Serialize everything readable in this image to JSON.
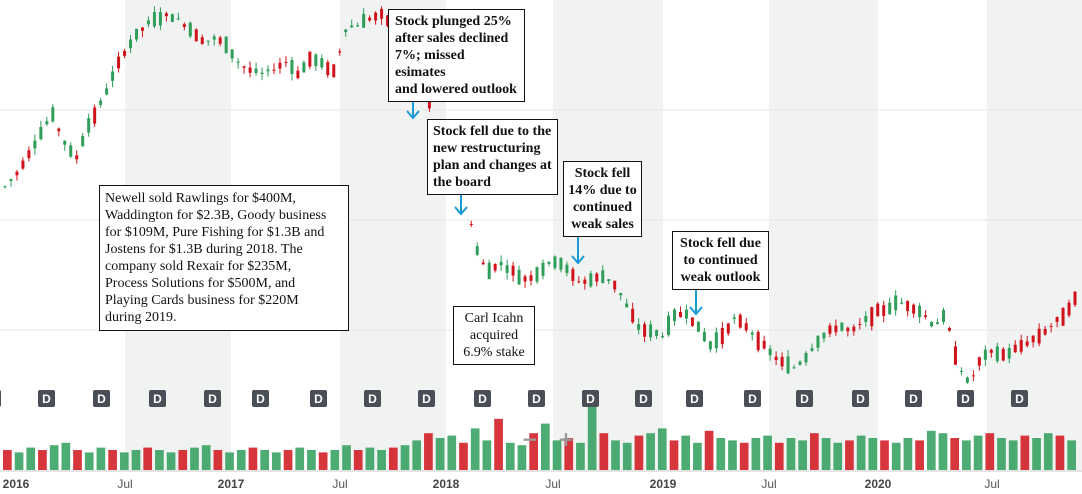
{
  "chart_data": {
    "type": "candlestick",
    "title": "",
    "xlabel": "",
    "ylabel": "",
    "x_tick_labels": [
      "2016",
      "Jul",
      "2017",
      "Jul",
      "2018",
      "Jul",
      "2019",
      "Jul",
      "2020",
      "Jul"
    ],
    "colors": {
      "up": "#2e9e5a",
      "down": "#d0131b",
      "arrow": "#1a9ad6",
      "band": "#f1f2f2"
    },
    "price_series": [
      0.48,
      0.52,
      0.58,
      0.64,
      0.7,
      0.62,
      0.56,
      0.66,
      0.72,
      0.8,
      0.88,
      0.93,
      0.97,
      0.99,
      1.0,
      0.98,
      0.95,
      0.92,
      0.93,
      0.9,
      0.85,
      0.83,
      0.82,
      0.84,
      0.86,
      0.82,
      0.87,
      0.85,
      0.83,
      0.96,
      0.97,
      0.99,
      1.0,
      0.97,
      0.94,
      0.86,
      0.74,
      0.62,
      0.6,
      0.5,
      0.3,
      0.22,
      0.25,
      0.23,
      0.2,
      0.21,
      0.24,
      0.26,
      0.22,
      0.19,
      0.2,
      0.21,
      0.18,
      0.11,
      0.05,
      0.04,
      0.03,
      0.09,
      0.1,
      0.05,
      0.0,
      0.03,
      0.08,
      0.06,
      0.02,
      -0.02,
      -0.05,
      -0.07,
      -0.04,
      0.01,
      0.04,
      0.06,
      0.04,
      0.07,
      0.1,
      0.11,
      0.13,
      0.12,
      0.1,
      0.06,
      0.09,
      -0.05,
      -0.12,
      -0.04,
      -0.02,
      -0.03,
      -0.01,
      0.01,
      0.03,
      0.06,
      0.09,
      0.14
    ],
    "volume_series": [
      5,
      4,
      6,
      5,
      7,
      8,
      5,
      4,
      6,
      5,
      4,
      5,
      6,
      5,
      4,
      5,
      6,
      7,
      5,
      4,
      5,
      6,
      5,
      4,
      5,
      6,
      5,
      4,
      5,
      7,
      5,
      6,
      5,
      6,
      7,
      9,
      12,
      10,
      11,
      8,
      14,
      9,
      18,
      8,
      7,
      12,
      16,
      9,
      10,
      8,
      30,
      12,
      9,
      8,
      11,
      12,
      14,
      9,
      11,
      8,
      13,
      10,
      9,
      8,
      10,
      11,
      8,
      10,
      9,
      12,
      10,
      8,
      9,
      11,
      10,
      9,
      8,
      10,
      9,
      13,
      12,
      10,
      9,
      11,
      12,
      10,
      9,
      11,
      10,
      12,
      11,
      9
    ],
    "dividend_markers": [
      "D",
      "D",
      "D",
      "D",
      "D",
      "D",
      "D",
      "D",
      "D",
      "D",
      "D",
      "D",
      "D",
      "D",
      "D",
      "D",
      "D",
      "D",
      "D",
      "D"
    ]
  },
  "annotations": {
    "plunge": "Stock plunged 25%\nafter sales declined\n7%; missed esimates\nand lowered outlook",
    "restructuring": "Stock fell due to the\nnew restructuring\nplan and changes at\nthe board",
    "fell14": "Stock fell\n14% due to\ncontinued\nweak sales",
    "outlook": "Stock fell due\nto continued\nweak outlook",
    "divest": "Newell sold Rawlings for $400M,\nWaddington for $2.3B, Goody business\nfor $109M, Pure Fishing for $1.3B and\nJostens for $1.3B during 2018. The\ncompany sold Rexair for $235M,\nProcess Solutions for $500M, and\nPlaying Cards business for $220M\nduring 2019.",
    "icahn": "Carl Icahn\nacquired\n6.9% stake"
  },
  "zoom": {
    "minus": "−",
    "plus": "+"
  }
}
